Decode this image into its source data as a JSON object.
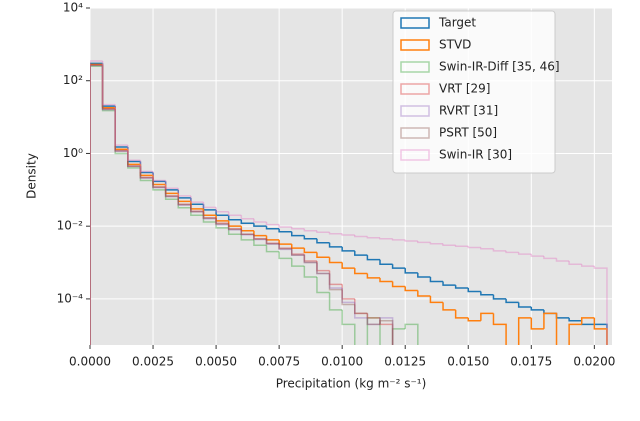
{
  "chart_data": {
    "type": "step-histogram",
    "xlabel": "Precipitation (kg m⁻² s⁻¹)",
    "ylabel": "Density",
    "log_y": true,
    "grid": true,
    "legend": "upper right",
    "xlim": [
      0,
      0.0207
    ],
    "ylim": [
      5.4e-06,
      10000
    ],
    "xticks": [
      {
        "value": 0,
        "label": "0.0000"
      },
      {
        "value": 0.0025,
        "label": "0.0025"
      },
      {
        "value": 0.005,
        "label": "0.0050"
      },
      {
        "value": 0.0075,
        "label": "0.0075"
      },
      {
        "value": 0.01,
        "label": "0.0100"
      },
      {
        "value": 0.0125,
        "label": "0.0125"
      },
      {
        "value": 0.015,
        "label": "0.0150"
      },
      {
        "value": 0.0175,
        "label": "0.0175"
      },
      {
        "value": 0.02,
        "label": "0.0200"
      }
    ],
    "yticks": [
      {
        "value": 0.0001,
        "label": "10⁻⁴"
      },
      {
        "value": 0.01,
        "label": "10⁻²"
      },
      {
        "value": 1,
        "label": "10⁰"
      },
      {
        "value": 100,
        "label": "10²"
      },
      {
        "value": 10000,
        "label": "10⁴"
      }
    ],
    "bins": [
      0,
      0.0005,
      0.001,
      0.0015,
      0.002,
      0.0025,
      0.003,
      0.0035,
      0.004,
      0.0045,
      0.005,
      0.0055,
      0.006,
      0.0065,
      0.007,
      0.0075,
      0.008,
      0.0085,
      0.009,
      0.0095,
      0.01,
      0.0105,
      0.011,
      0.0115,
      0.012,
      0.0125,
      0.013,
      0.0135,
      0.014,
      0.0145,
      0.015,
      0.0155,
      0.016,
      0.0165,
      0.017,
      0.0175,
      0.018,
      0.0185,
      0.019,
      0.0195,
      0.02,
      0.0205
    ],
    "series": [
      {
        "name": "Target",
        "color": "#1f77b4",
        "alpha": 1,
        "values": [
          300,
          20,
          1.5,
          0.6,
          0.3,
          0.17,
          0.1,
          0.06,
          0.04,
          0.028,
          0.02,
          0.015,
          0.012,
          0.01,
          0.0085,
          0.007,
          0.0055,
          0.0045,
          0.0035,
          0.0027,
          0.0021,
          0.0016,
          0.0012,
          0.0009,
          0.0007,
          0.00052,
          0.0004,
          0.0003,
          0.00024,
          0.0002,
          0.00016,
          0.00013,
          0.0001,
          8e-05,
          6e-05,
          5e-05,
          4e-05,
          3e-05,
          2.5e-05,
          2e-05,
          2e-05
        ]
      },
      {
        "name": "STVD",
        "color": "#ff7f0e",
        "alpha": 1,
        "values": [
          280,
          18,
          1.3,
          0.5,
          0.25,
          0.14,
          0.08,
          0.048,
          0.03,
          0.02,
          0.014,
          0.01,
          0.0075,
          0.0055,
          0.0042,
          0.0032,
          0.0025,
          0.0019,
          0.0014,
          0.001,
          0.0007,
          0.0005,
          0.00038,
          0.0003,
          0.00022,
          0.00017,
          0.00012,
          8e-05,
          5e-05,
          3e-05,
          2.5e-05,
          4e-05,
          2e-05,
          null,
          3e-05,
          1.5e-05,
          4e-05,
          null,
          2e-05,
          3e-05,
          1.5e-05
        ]
      },
      {
        "name": "Swin-IR-Diff [35, 46]",
        "color": "#2ca02c",
        "alpha": 0.4,
        "values": [
          250,
          15,
          1,
          0.4,
          0.18,
          0.1,
          0.055,
          0.032,
          0.02,
          0.013,
          0.009,
          0.006,
          0.0042,
          0.003,
          0.002,
          0.0013,
          0.0008,
          0.0004,
          0.00015,
          5e-05,
          2e-05,
          null,
          3e-05,
          null,
          1.5e-05,
          2e-05,
          null,
          null,
          null,
          null,
          null,
          null,
          null,
          null,
          null,
          null,
          null,
          null,
          null,
          null,
          null
        ]
      },
      {
        "name": "VRT [29]",
        "color": "#d62728",
        "alpha": 0.4,
        "values": [
          270,
          17,
          1.2,
          0.45,
          0.22,
          0.12,
          0.068,
          0.04,
          0.026,
          0.017,
          0.012,
          0.0085,
          0.006,
          0.0045,
          0.0034,
          0.0025,
          0.0017,
          0.0011,
          0.0006,
          0.00025,
          0.0001,
          4e-05,
          3e-05,
          2e-05,
          null,
          null,
          null,
          null,
          null,
          null,
          null,
          null,
          null,
          null,
          null,
          null,
          null,
          null,
          null,
          null,
          null
        ]
      },
      {
        "name": "RVRT [31]",
        "color": "#9467bd",
        "alpha": 0.4,
        "values": [
          265,
          16,
          1.15,
          0.44,
          0.21,
          0.115,
          0.065,
          0.038,
          0.025,
          0.016,
          0.011,
          0.008,
          0.0058,
          0.0043,
          0.0032,
          0.0023,
          0.0016,
          0.001,
          0.0005,
          0.0002,
          8e-05,
          3e-05,
          2e-05,
          3e-05,
          null,
          null,
          null,
          null,
          null,
          null,
          null,
          null,
          null,
          null,
          null,
          null,
          null,
          null,
          null,
          null,
          null
        ]
      },
      {
        "name": "PSRT [50]",
        "color": "#8c564b",
        "alpha": 0.4,
        "values": [
          268,
          16.5,
          1.18,
          0.45,
          0.215,
          0.118,
          0.066,
          0.039,
          0.025,
          0.0165,
          0.0115,
          0.0082,
          0.006,
          0.0044,
          0.0033,
          0.0024,
          0.0016,
          0.001,
          0.0005,
          0.00018,
          7e-05,
          4e-05,
          2e-05,
          2.5e-05,
          null,
          null,
          null,
          null,
          null,
          null,
          null,
          null,
          null,
          null,
          null,
          null,
          null,
          null,
          null,
          null,
          null
        ]
      },
      {
        "name": "Swin-IR [30]",
        "color": "#e377c2",
        "alpha": 0.4,
        "values": [
          350,
          22,
          1.7,
          0.65,
          0.32,
          0.18,
          0.11,
          0.068,
          0.046,
          0.033,
          0.025,
          0.02,
          0.016,
          0.013,
          0.011,
          0.0095,
          0.0085,
          0.0075,
          0.0068,
          0.0062,
          0.0057,
          0.0052,
          0.0048,
          0.0045,
          0.0042,
          0.0039,
          0.0036,
          0.0033,
          0.003,
          0.0028,
          0.0026,
          0.0024,
          0.0021,
          0.0019,
          0.0017,
          0.0015,
          0.0013,
          0.0011,
          0.0009,
          0.0008,
          0.0007
        ]
      }
    ]
  }
}
